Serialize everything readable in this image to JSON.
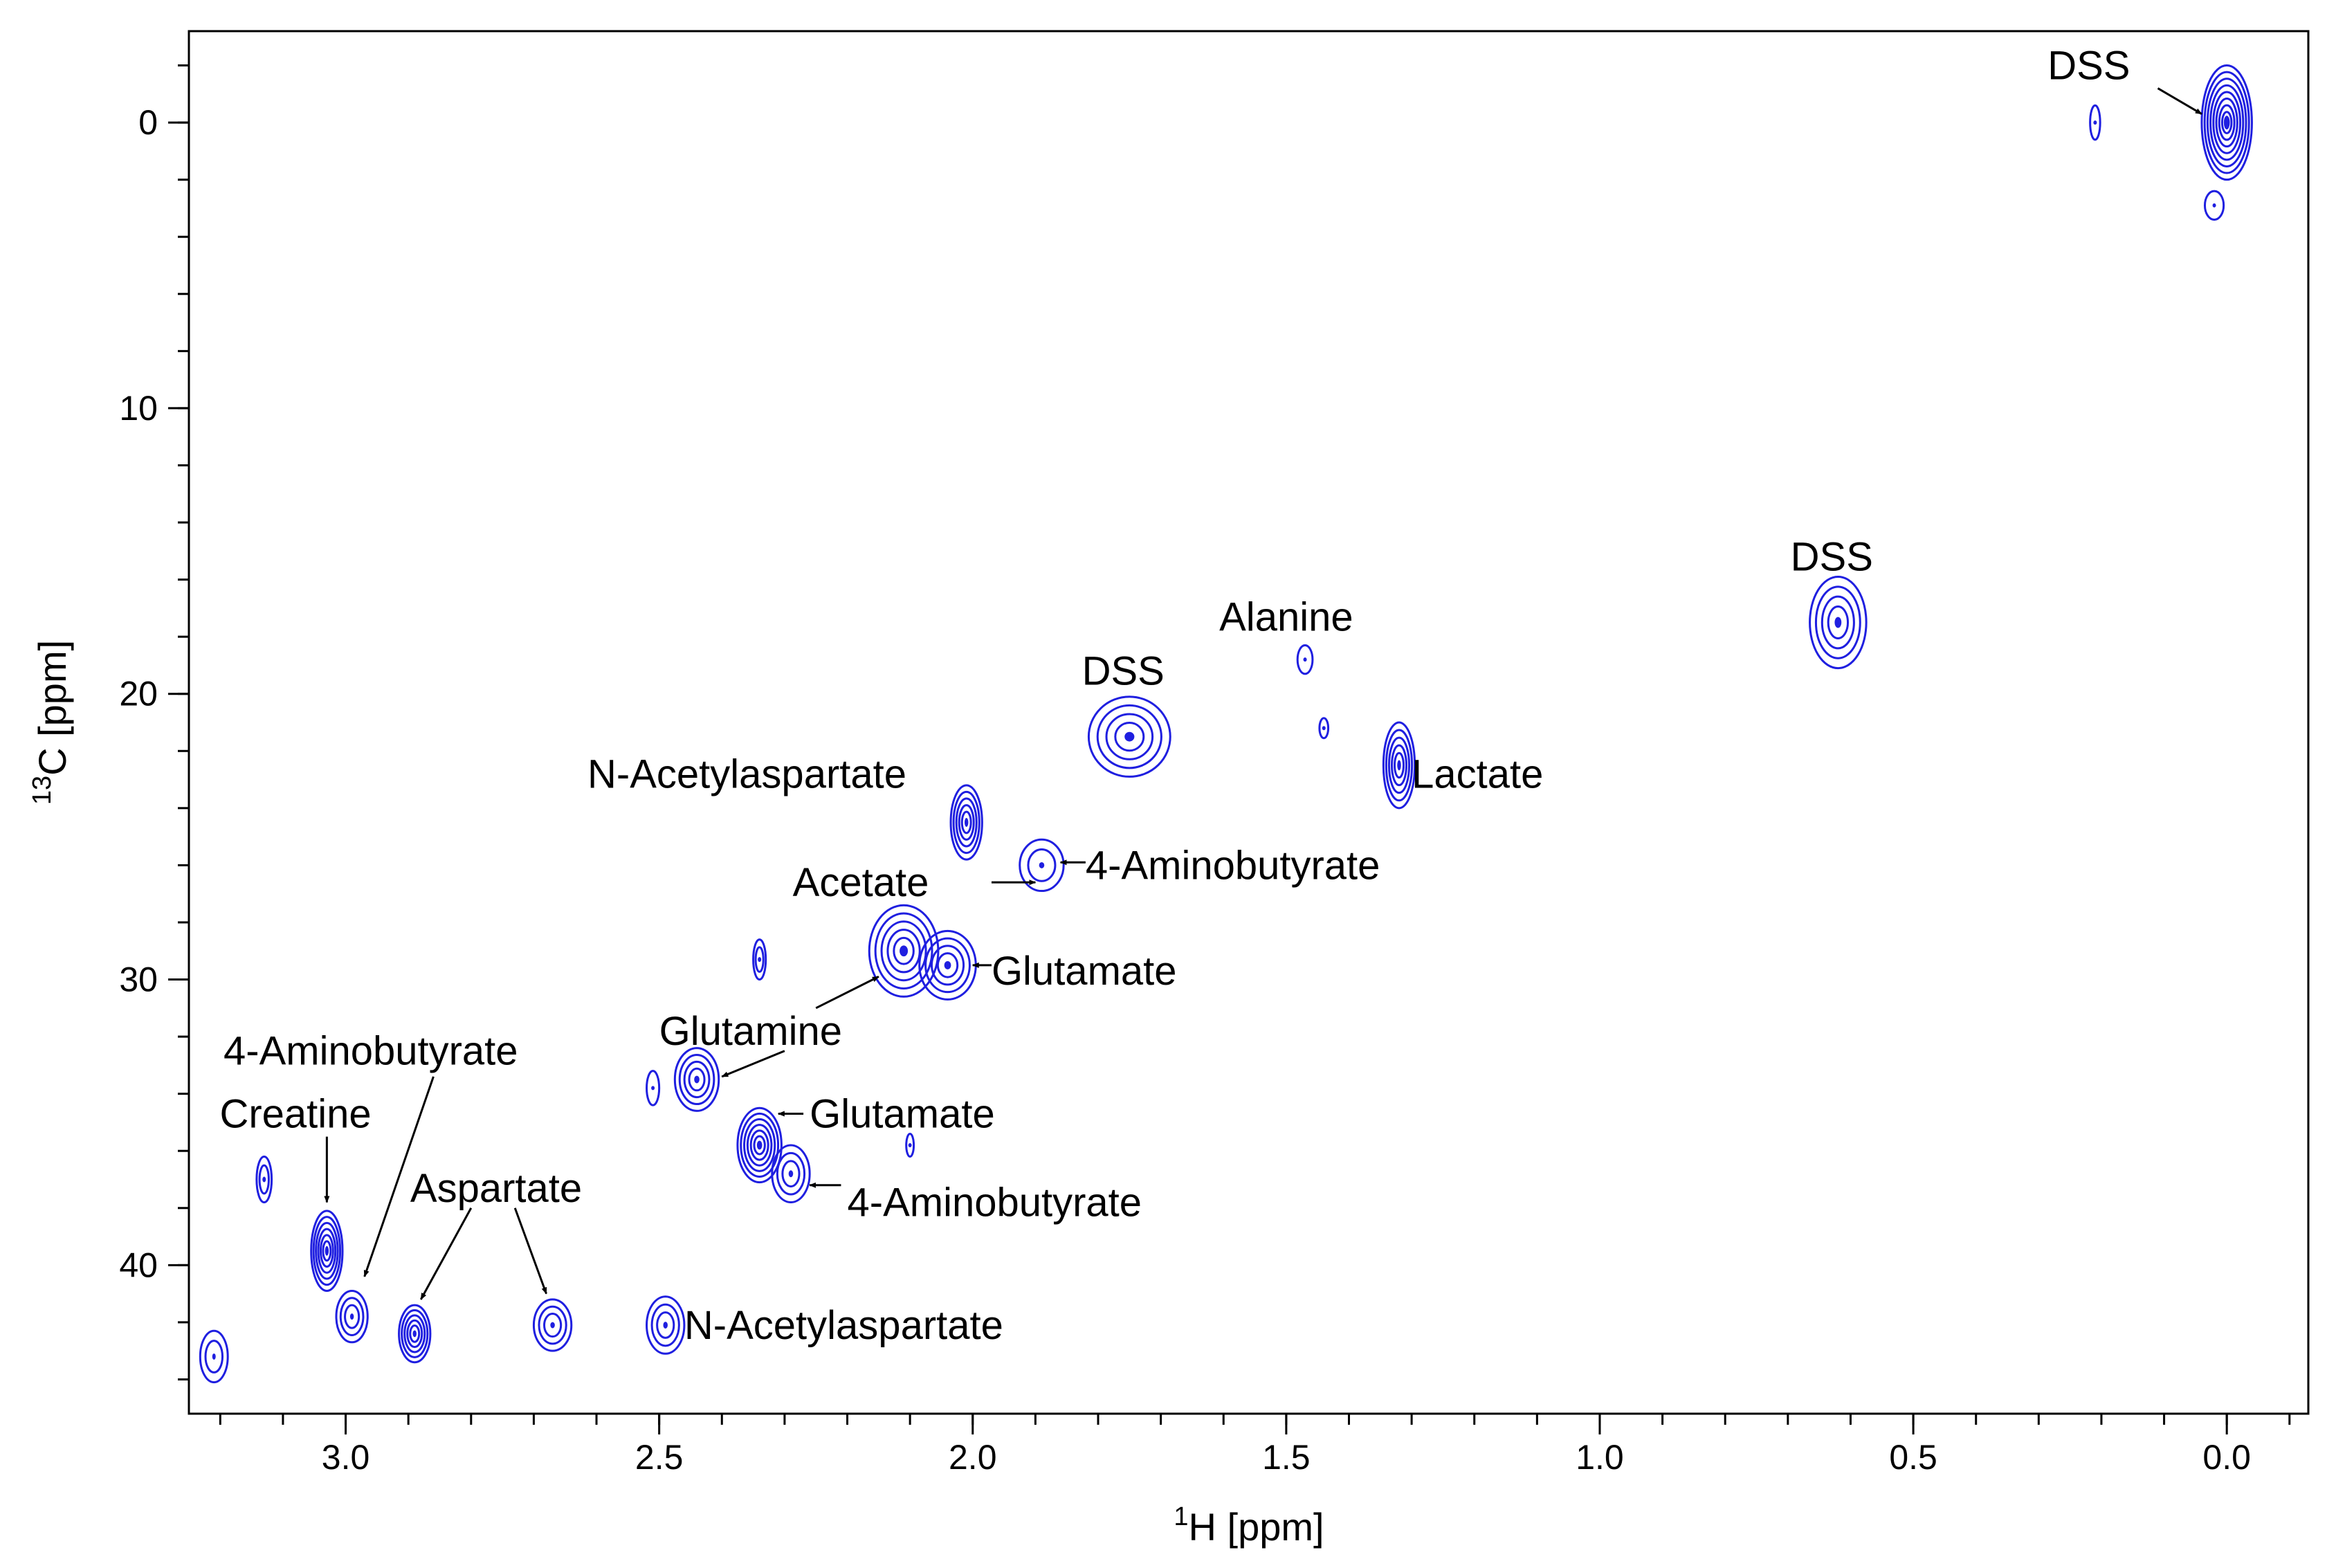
{
  "chart_data": {
    "type": "contour",
    "title": "",
    "x_axis": {
      "label_sup": "1",
      "label_main": "H [ppm]",
      "range": [
        3.25,
        -0.13
      ],
      "reversed": true,
      "ticks": [
        {
          "value": 3.0,
          "label": "3.0"
        },
        {
          "value": 2.5,
          "label": "2.5"
        },
        {
          "value": 2.0,
          "label": "2.0"
        },
        {
          "value": 1.5,
          "label": "1.5"
        },
        {
          "value": 1.0,
          "label": "1.0"
        },
        {
          "value": 0.5,
          "label": "0.5"
        },
        {
          "value": 0.0,
          "label": "0.0"
        }
      ],
      "minor_step": 0.1
    },
    "y_axis": {
      "label_sup": "13",
      "label_main": "C [ppm]",
      "range": [
        -3.2,
        45.2
      ],
      "reversed": true,
      "ticks": [
        {
          "value": 0,
          "label": "0"
        },
        {
          "value": 10,
          "label": "10"
        },
        {
          "value": 20,
          "label": "20"
        },
        {
          "value": 30,
          "label": "30"
        },
        {
          "value": 40,
          "label": "40"
        }
      ],
      "minor_step": 2
    },
    "contour_color": "#1f1fe0",
    "peaks": [
      {
        "name": "DSS",
        "h": 0.0,
        "c": 0.0,
        "rh": 0.04,
        "rc": 2.0,
        "levels": 8
      },
      {
        "name": "DSS",
        "h": 0.62,
        "c": 17.5,
        "rh": 0.045,
        "rc": 1.6,
        "levels": 4
      },
      {
        "name": "DSS",
        "h": 1.75,
        "c": 21.5,
        "rh": 0.065,
        "rc": 1.4,
        "levels": 4
      },
      {
        "name": "Alanine",
        "h": 1.47,
        "c": 18.8,
        "rh": 0.012,
        "rc": 0.5,
        "levels": 1
      },
      {
        "name": "Alanine",
        "h": 1.44,
        "c": 21.2,
        "rh": 0.007,
        "rc": 0.35,
        "levels": 1
      },
      {
        "name": "Lactate",
        "h": 1.32,
        "c": 22.5,
        "rh": 0.025,
        "rc": 1.5,
        "levels": 5
      },
      {
        "name": "N-Acetylaspartate",
        "h": 2.01,
        "c": 24.5,
        "rh": 0.025,
        "rc": 1.3,
        "levels": 5
      },
      {
        "name": "4-Aminobutyrate",
        "h": 1.89,
        "c": 26.0,
        "rh": 0.035,
        "rc": 0.9,
        "levels": 2
      },
      {
        "name": "Glutamine",
        "h": 2.11,
        "c": 29.0,
        "rh": 0.055,
        "rc": 1.6,
        "levels": 5
      },
      {
        "name": "Glutamate",
        "h": 2.04,
        "c": 29.5,
        "rh": 0.045,
        "rc": 1.2,
        "levels": 4
      },
      {
        "name": "peak",
        "h": 2.34,
        "c": 29.3,
        "rh": 0.01,
        "rc": 0.7,
        "levels": 2
      },
      {
        "name": "Glutamine",
        "h": 2.44,
        "c": 33.5,
        "rh": 0.035,
        "rc": 1.1,
        "levels": 4
      },
      {
        "name": "peak",
        "h": 2.51,
        "c": 33.8,
        "rh": 0.01,
        "rc": 0.6,
        "levels": 1
      },
      {
        "name": "Glutamate",
        "h": 2.34,
        "c": 35.8,
        "rh": 0.035,
        "rc": 1.3,
        "levels": 6
      },
      {
        "name": "4-Aminobutyrate",
        "h": 2.29,
        "c": 36.8,
        "rh": 0.03,
        "rc": 1.0,
        "levels": 3
      },
      {
        "name": "peak",
        "h": 2.1,
        "c": 35.8,
        "rh": 0.006,
        "rc": 0.4,
        "levels": 1
      },
      {
        "name": "Creatine",
        "h": 3.03,
        "c": 39.5,
        "rh": 0.025,
        "rc": 1.4,
        "levels": 6
      },
      {
        "name": "4-Aminobutyrate",
        "h": 2.99,
        "c": 41.8,
        "rh": 0.025,
        "rc": 0.9,
        "levels": 3
      },
      {
        "name": "Aspartate",
        "h": 2.89,
        "c": 42.4,
        "rh": 0.025,
        "rc": 1.0,
        "levels": 5
      },
      {
        "name": "Aspartate",
        "h": 2.67,
        "c": 42.1,
        "rh": 0.03,
        "rc": 0.9,
        "levels": 3
      },
      {
        "name": "N-Acetylaspartate",
        "h": 2.49,
        "c": 42.1,
        "rh": 0.03,
        "rc": 1.0,
        "levels": 3
      },
      {
        "name": "peak",
        "h": 3.13,
        "c": 37.0,
        "rh": 0.012,
        "rc": 0.8,
        "levels": 2
      },
      {
        "name": "peak",
        "h": 3.21,
        "c": 43.2,
        "rh": 0.022,
        "rc": 0.9,
        "levels": 2
      },
      {
        "name": "peak",
        "h": 0.21,
        "c": 0.0,
        "rh": 0.008,
        "rc": 0.6,
        "levels": 1
      },
      {
        "name": "peak",
        "h": 0.02,
        "c": 2.9,
        "rh": 0.015,
        "rc": 0.5,
        "levels": 1
      }
    ],
    "annotations": [
      {
        "text": "DSS",
        "h": 0.22,
        "c": -2.0,
        "anchor": "middle",
        "arrow": {
          "from": [
            0.11,
            -1.2
          ],
          "to": [
            0.04,
            -0.3
          ]
        }
      },
      {
        "text": "DSS",
        "h": 0.63,
        "c": 15.2,
        "anchor": "middle"
      },
      {
        "text": "Alanine",
        "h": 1.5,
        "c": 17.3,
        "anchor": "middle"
      },
      {
        "text": "DSS",
        "h": 1.76,
        "c": 19.2,
        "anchor": "middle"
      },
      {
        "text": "N-Acetylaspartate",
        "h": 2.36,
        "c": 22.8,
        "anchor": "middle"
      },
      {
        "text": "Lactate",
        "h": 1.3,
        "c": 22.8,
        "anchor": "start"
      },
      {
        "text": "4-Aminobutyrate",
        "h": 1.82,
        "c": 26.0,
        "anchor": "start",
        "arrow": {
          "from": [
            1.82,
            25.9
          ],
          "to": [
            1.86,
            25.9
          ]
        }
      },
      {
        "text": "Acetate",
        "h": 2.07,
        "c": 26.6,
        "anchor": "end",
        "arrow": {
          "from": [
            1.97,
            26.6
          ],
          "to": [
            1.9,
            26.6
          ]
        }
      },
      {
        "text": "Glutamate",
        "h": 1.97,
        "c": 29.7,
        "anchor": "start",
        "arrow": {
          "from": [
            1.97,
            29.5
          ],
          "to": [
            2.0,
            29.5
          ]
        }
      },
      {
        "text": "Glutamine",
        "h": 2.5,
        "c": 31.8,
        "anchor": "start",
        "arrow": {
          "from": [
            2.25,
            31.0
          ],
          "to": [
            2.15,
            29.9
          ]
        },
        "arrow2": {
          "from": [
            2.3,
            32.5
          ],
          "to": [
            2.4,
            33.4
          ]
        }
      },
      {
        "text": "Glutamate",
        "h": 2.26,
        "c": 34.7,
        "anchor": "start",
        "arrow": {
          "from": [
            2.27,
            34.7
          ],
          "to": [
            2.31,
            34.7
          ]
        }
      },
      {
        "text": "4-Aminobutyrate",
        "h": 2.2,
        "c": 37.8,
        "anchor": "start",
        "arrow": {
          "from": [
            2.21,
            37.2
          ],
          "to": [
            2.26,
            37.2
          ]
        }
      },
      {
        "text": "4-Aminobutyrate",
        "h": 2.96,
        "c": 32.5,
        "anchor": "middle",
        "arrow": {
          "from": [
            2.86,
            33.4
          ],
          "to": [
            2.97,
            40.4
          ]
        }
      },
      {
        "text": "Creatine",
        "h": 3.08,
        "c": 34.7,
        "anchor": "middle",
        "arrow": {
          "from": [
            3.03,
            35.5
          ],
          "to": [
            3.03,
            37.8
          ]
        }
      },
      {
        "text": "Aspartate",
        "h": 2.76,
        "c": 37.3,
        "anchor": "middle",
        "arrow": {
          "from": [
            2.8,
            38.0
          ],
          "to": [
            2.88,
            41.2
          ]
        },
        "arrow2": {
          "from": [
            2.73,
            38.0
          ],
          "to": [
            2.68,
            41.0
          ]
        }
      },
      {
        "text": "N-Acetylaspartate",
        "h": 2.46,
        "c": 42.1,
        "anchor": "start"
      }
    ]
  }
}
